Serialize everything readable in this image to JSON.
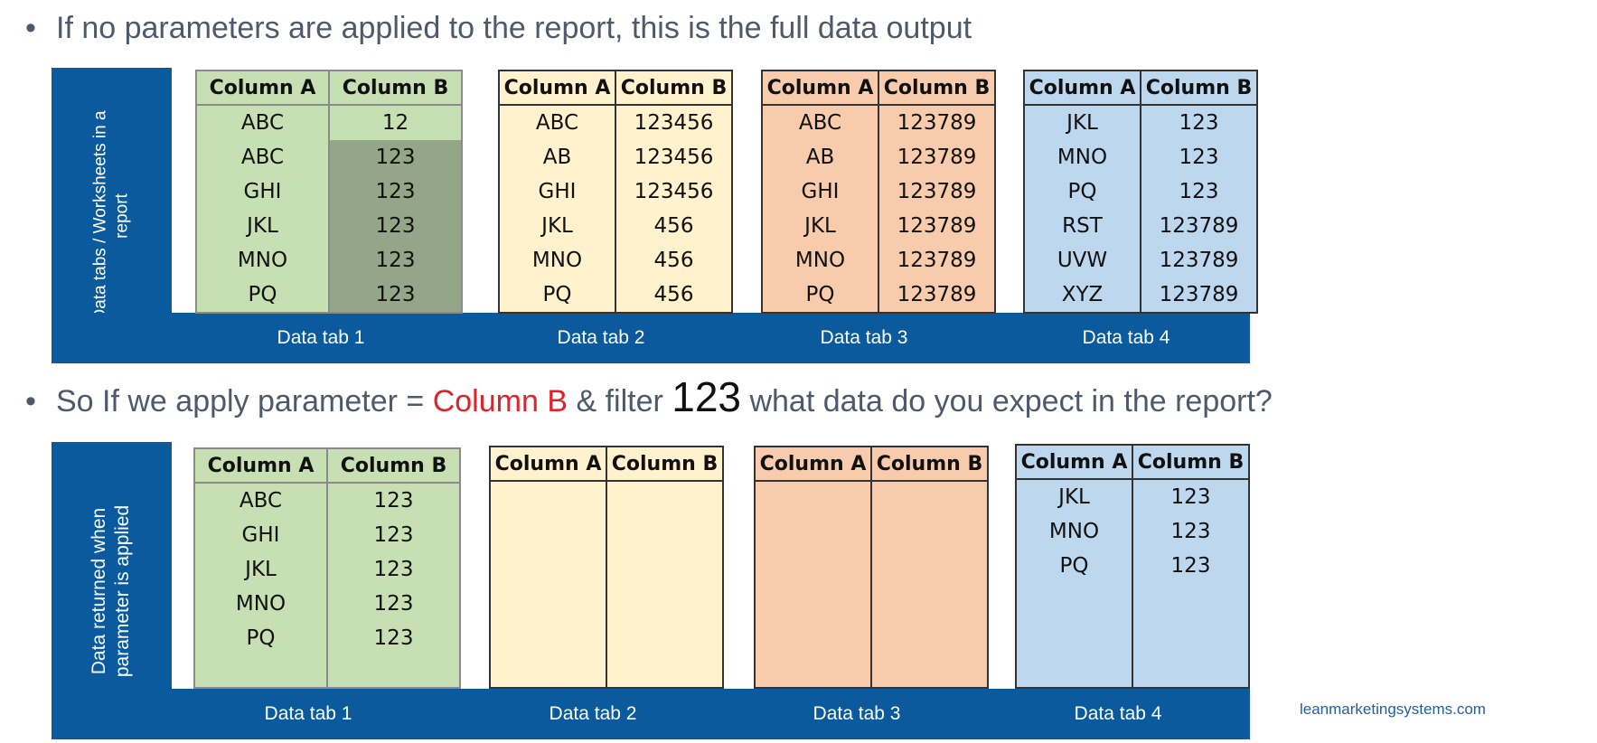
{
  "bullet1": "If no parameters are applied to the report, this is the full data output",
  "bullet2": {
    "prefix": "So If we apply parameter = ",
    "param": "Column B",
    "middle": " & filter ",
    "value": "123",
    "suffix": " what data do you expect in the report?"
  },
  "bullet_marker": "•",
  "panel1": {
    "side_label": "Data tabs / Worksheets in a report",
    "tabs": [
      {
        "label": "Data tab 1",
        "headers": [
          "Column A",
          "Column B"
        ],
        "rows": [
          [
            "ABC",
            "12"
          ],
          [
            "ABC",
            "123"
          ],
          [
            "GHI",
            "123"
          ],
          [
            "JKL",
            "123"
          ],
          [
            "MNO",
            "123"
          ],
          [
            "PQ",
            "123"
          ]
        ]
      },
      {
        "label": "Data tab 2",
        "headers": [
          "Column A",
          "Column B"
        ],
        "rows": [
          [
            "ABC",
            "123456"
          ],
          [
            "AB",
            "123456"
          ],
          [
            "GHI",
            "123456"
          ],
          [
            "JKL",
            "456"
          ],
          [
            "MNO",
            "456"
          ],
          [
            "PQ",
            "456"
          ]
        ]
      },
      {
        "label": "Data tab 3",
        "headers": [
          "Column A",
          "Column B"
        ],
        "rows": [
          [
            "ABC",
            "123789"
          ],
          [
            "AB",
            "123789"
          ],
          [
            "GHI",
            "123789"
          ],
          [
            "JKL",
            "123789"
          ],
          [
            "MNO",
            "123789"
          ],
          [
            "PQ",
            "123789"
          ]
        ]
      },
      {
        "label": "Data tab 4",
        "headers": [
          "Column A",
          "Column B"
        ],
        "rows": [
          [
            "JKL",
            "123"
          ],
          [
            "MNO",
            "123"
          ],
          [
            "PQ",
            "123"
          ],
          [
            "RST",
            "123789"
          ],
          [
            "UVW",
            "123789"
          ],
          [
            "XYZ",
            "123789"
          ]
        ]
      }
    ]
  },
  "panel2": {
    "side_label": "Data returned when parameter is applied",
    "tabs": [
      {
        "label": "Data tab 1",
        "headers": [
          "Column A",
          "Column B"
        ],
        "rows": [
          [
            "ABC",
            "123"
          ],
          [
            "GHI",
            "123"
          ],
          [
            "JKL",
            "123"
          ],
          [
            "MNO",
            "123"
          ],
          [
            "PQ",
            "123"
          ]
        ]
      },
      {
        "label": "Data tab 2",
        "headers": [
          "Column A",
          "Column B"
        ],
        "rows": []
      },
      {
        "label": "Data tab 3",
        "headers": [
          "Column A",
          "Column B"
        ],
        "rows": []
      },
      {
        "label": "Data tab 4",
        "headers": [
          "Column A",
          "Column B"
        ],
        "rows": [
          [
            "JKL",
            "123"
          ],
          [
            "MNO",
            "123"
          ],
          [
            "PQ",
            "123"
          ]
        ]
      }
    ]
  },
  "credit": "leanmarketingsystems.com"
}
